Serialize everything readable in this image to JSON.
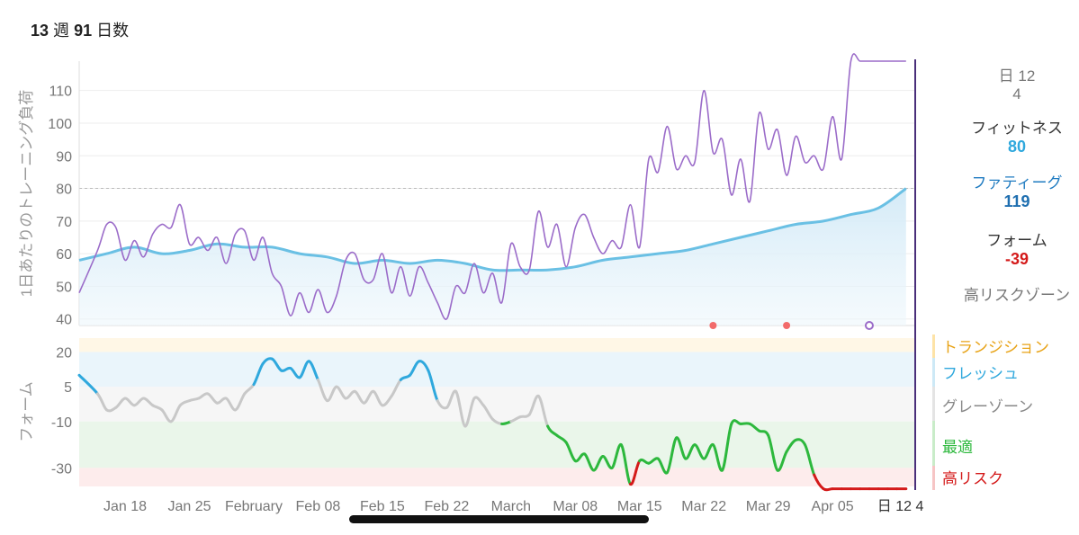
{
  "header": {
    "weeks_num": "13",
    "weeks_unit": "週",
    "days_num": "91",
    "days_unit": "日数"
  },
  "side": {
    "date_line1": "日 12",
    "date_line2": "4",
    "fitness_label": "フィットネス",
    "fitness_value": "80",
    "fatigue_label": "ファティーグ",
    "fatigue_value": "119",
    "form_label": "フォーム",
    "form_value": "-39",
    "risk_label": "高リスクゾーン"
  },
  "zones": [
    {
      "label": "トランジション",
      "color": "#e8a317"
    },
    {
      "label": "フレッシュ",
      "color": "#2fa8dd"
    },
    {
      "label": "グレーゾーン",
      "color": "#888888"
    },
    {
      "label": "最適",
      "color": "#2db83d"
    },
    {
      "label": "高リスク",
      "color": "#d41a1a"
    }
  ],
  "colors": {
    "fitness": "#6ac0e4",
    "fatigue": "#9b6cc9",
    "form_fresh": "#2fa8dd",
    "form_grey": "#c8c8c8",
    "form_optimal": "#2db83d",
    "form_risk": "#d41a1a",
    "cursor": "#4a2f7a"
  },
  "chart_data": [
    {
      "type": "line",
      "ylabel": "1日あたりのトレーニング負荷",
      "ylim": [
        38,
        119
      ],
      "yticks": [
        40,
        50,
        60,
        70,
        80,
        90,
        100,
        110
      ],
      "reference_line": 80,
      "xlim": [
        0,
        91
      ],
      "x_ticks": [
        {
          "day": 5,
          "label": "Jan 18"
        },
        {
          "day": 12,
          "label": "Jan 25"
        },
        {
          "day": 19,
          "label": "February"
        },
        {
          "day": 26,
          "label": "Feb 08"
        },
        {
          "day": 33,
          "label": "Feb 15"
        },
        {
          "day": 40,
          "label": "Feb 22"
        },
        {
          "day": 47,
          "label": "March"
        },
        {
          "day": 54,
          "label": "Mar 08"
        },
        {
          "day": 61,
          "label": "Mar 15"
        },
        {
          "day": 68,
          "label": "Mar 22"
        },
        {
          "day": 75,
          "label": "Mar 29"
        },
        {
          "day": 82,
          "label": "Apr 05"
        },
        {
          "day": 89,
          "label": "日 12 4"
        }
      ],
      "series": [
        {
          "name": "フィットネス",
          "x": [
            0,
            3,
            6,
            9,
            12,
            15,
            18,
            21,
            24,
            27,
            30,
            33,
            36,
            39,
            42,
            45,
            48,
            51,
            54,
            57,
            60,
            63,
            66,
            69,
            72,
            75,
            78,
            81,
            84,
            87,
            90
          ],
          "values": [
            58,
            60,
            62,
            60,
            61,
            63,
            62,
            62,
            60,
            59,
            57,
            58,
            57,
            58,
            57,
            55,
            55,
            55,
            56,
            58,
            59,
            60,
            61,
            63,
            65,
            67,
            69,
            70,
            72,
            74,
            80
          ]
        },
        {
          "name": "ファティーグ",
          "x": [
            0,
            2,
            3,
            4,
            5,
            6,
            7,
            8,
            9,
            10,
            11,
            12,
            13,
            14,
            15,
            16,
            17,
            18,
            19,
            20,
            21,
            22,
            23,
            24,
            25,
            26,
            27,
            28,
            29,
            30,
            31,
            32,
            33,
            34,
            35,
            36,
            37,
            38,
            39,
            40,
            41,
            42,
            43,
            44,
            45,
            46,
            47,
            48,
            49,
            50,
            51,
            52,
            53,
            54,
            55,
            56,
            57,
            58,
            59,
            60,
            61,
            62,
            63,
            64,
            65,
            66,
            67,
            68,
            69,
            70,
            71,
            72,
            73,
            74,
            75,
            76,
            77,
            78,
            79,
            80,
            81,
            82,
            83,
            84,
            85,
            86,
            87,
            88,
            89,
            90
          ],
          "values": [
            48,
            61,
            69,
            68,
            58,
            64,
            59,
            66,
            69,
            68,
            75,
            63,
            65,
            61,
            65,
            57,
            66,
            67,
            58,
            65,
            54,
            50,
            41,
            48,
            42,
            49,
            42,
            47,
            58,
            60,
            52,
            52,
            60,
            48,
            56,
            47,
            56,
            51,
            45,
            40,
            50,
            48,
            57,
            48,
            54,
            45,
            63,
            56,
            55,
            73,
            62,
            69,
            56,
            68,
            72,
            65,
            60,
            64,
            62,
            75,
            62,
            89,
            85,
            99,
            86,
            90,
            88,
            110,
            91,
            95,
            78,
            89,
            76,
            103,
            92,
            98,
            84,
            96,
            88,
            90,
            86,
            102,
            89,
            119,
            119,
            119,
            119,
            119,
            119,
            119
          ]
        }
      ],
      "markers": [
        {
          "day": 69,
          "color": "#f26b6b"
        },
        {
          "day": 77,
          "color": "#f26b6b"
        },
        {
          "day": 86,
          "color": "#9b6cc9",
          "hollow": true
        }
      ]
    },
    {
      "type": "line",
      "ylabel": "フォーム",
      "ylim": [
        -38,
        26
      ],
      "yticks": [
        -30,
        -10,
        5,
        20
      ],
      "bands": [
        {
          "from": 20,
          "to": 26,
          "color": "#fff7e6"
        },
        {
          "from": 5,
          "to": 20,
          "color": "#eaf5fb"
        },
        {
          "from": -10,
          "to": 5,
          "color": "#f6f6f6"
        },
        {
          "from": -30,
          "to": -10,
          "color": "#eaf6ea"
        },
        {
          "from": -38,
          "to": -30,
          "color": "#fdecec"
        }
      ],
      "series": [
        {
          "name": "フォーム",
          "x": [
            0,
            2,
            3,
            4,
            5,
            6,
            7,
            8,
            9,
            10,
            11,
            12,
            13,
            14,
            15,
            16,
            17,
            18,
            19,
            20,
            21,
            22,
            23,
            24,
            25,
            26,
            27,
            28,
            29,
            30,
            31,
            32,
            33,
            34,
            35,
            36,
            37,
            38,
            39,
            40,
            41,
            42,
            43,
            44,
            45,
            46,
            47,
            48,
            49,
            50,
            51,
            52,
            53,
            54,
            55,
            56,
            57,
            58,
            59,
            60,
            61,
            62,
            63,
            64,
            65,
            66,
            67,
            68,
            69,
            70,
            71,
            72,
            73,
            74,
            75,
            76,
            77,
            78,
            79,
            80,
            81,
            82,
            83,
            84,
            85,
            86,
            87,
            88,
            89,
            90
          ],
          "values": [
            10,
            2,
            -5,
            -4,
            0,
            -3,
            0,
            -3,
            -5,
            -10,
            -3,
            -1,
            0,
            2,
            -2,
            0,
            -5,
            2,
            6,
            15,
            17,
            12,
            13,
            9,
            16,
            8,
            -1,
            5,
            0,
            3,
            -2,
            3,
            -3,
            1,
            8,
            10,
            16,
            12,
            -1,
            -4,
            3,
            -12,
            0,
            -3,
            -9,
            -11,
            -10,
            -8,
            -7,
            1,
            -12,
            -16,
            -19,
            -27,
            -24,
            -31,
            -25,
            -30,
            -20,
            -37,
            -27,
            -28,
            -26,
            -32,
            -17,
            -26,
            -20,
            -26,
            -20,
            -31,
            -11,
            -11,
            -11,
            -14,
            -16,
            -31,
            -23,
            -18,
            -20,
            -33,
            -39,
            -39,
            -39,
            -39,
            -39,
            -39,
            -39,
            -39,
            -39,
            -39
          ]
        }
      ]
    }
  ]
}
